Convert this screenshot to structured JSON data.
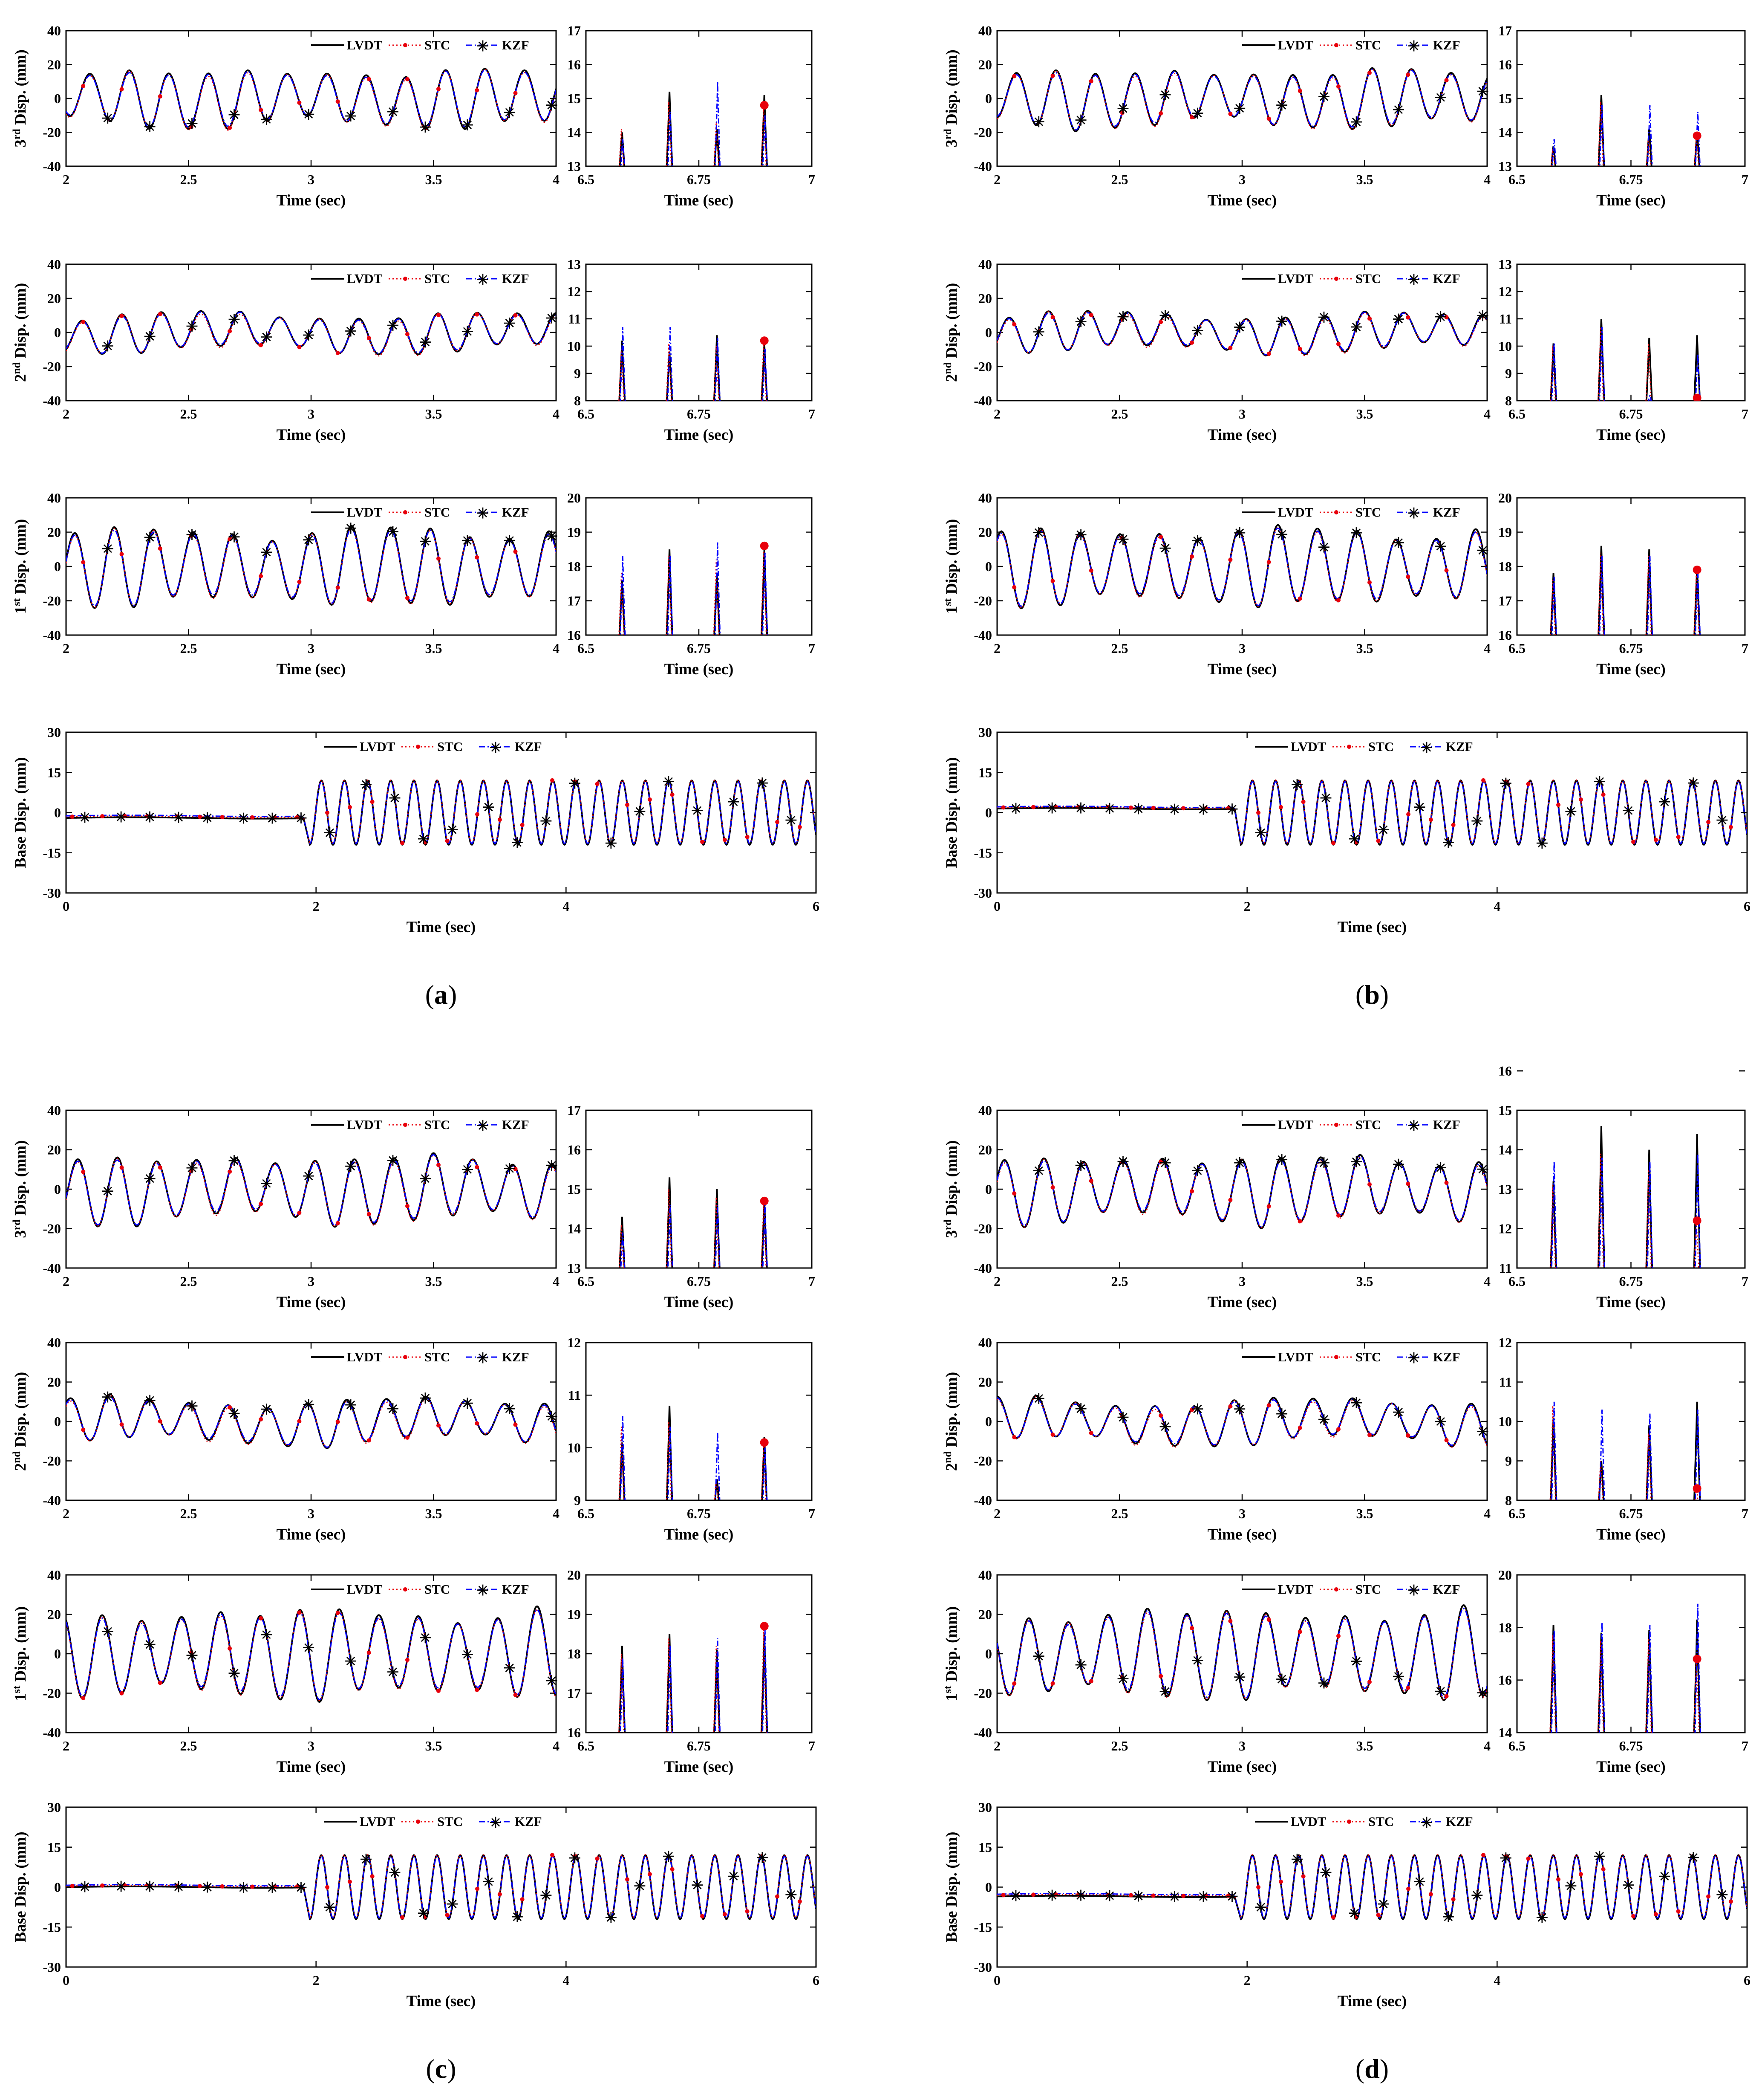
{
  "chart_data": {
    "type": "line",
    "panels": [
      "(a)",
      "(b)",
      "(c)",
      "(d)"
    ],
    "series": [
      {
        "name": "LVDT",
        "color": "#000000",
        "style": "solid"
      },
      {
        "name": "STC",
        "color": "#e8000b",
        "style": "dotted-dot-marker"
      },
      {
        "name": "KZF",
        "color": "#0000ff",
        "style": "dashdot-star-marker"
      }
    ],
    "legend": [
      "LVDT",
      "STC",
      "KZF"
    ],
    "legend_placement": "top-right",
    "signal": {
      "frequency_hz": 6.2,
      "base_amplitude_mm": 12,
      "base_offset_mm": -2,
      "step_time_sec": 1.9
    },
    "story_plots": [
      {
        "ylabel_pre": "3",
        "ylabel_sup": "rd",
        "ylabel_post": " Disp. (mm)",
        "amp_mm": 15,
        "ylim": [
          -40,
          40
        ],
        "yticks": [
          "-40",
          "-20",
          "0",
          "20",
          "40"
        ],
        "xlim": [
          2,
          4
        ],
        "xticks": [
          "2",
          "2.5",
          "3",
          "3.5",
          "4"
        ],
        "xlabel": "Time (sec)"
      },
      {
        "ylabel_pre": "2",
        "ylabel_sup": "nd",
        "ylabel_post": " Disp. (mm)",
        "amp_mm": 10,
        "ylim": [
          -40,
          40
        ],
        "yticks": [
          "-40",
          "-20",
          "0",
          "20",
          "40"
        ],
        "xlim": [
          2,
          4
        ],
        "xticks": [
          "2",
          "2.5",
          "3",
          "3.5",
          "4"
        ],
        "xlabel": "Time (sec)"
      },
      {
        "ylabel_pre": "1",
        "ylabel_sup": "st",
        "ylabel_post": " Disp. (mm)",
        "amp_mm": 20,
        "ylim": [
          -40,
          40
        ],
        "yticks": [
          "-40",
          "-20",
          "0",
          "20",
          "40"
        ],
        "xlim": [
          2,
          4
        ],
        "xticks": [
          "2",
          "2.5",
          "3",
          "3.5",
          "4"
        ],
        "xlabel": "Time (sec)"
      }
    ],
    "base_plot": {
      "ylabel": "Base Disp. (mm)",
      "ylim": [
        -30,
        30
      ],
      "yticks": [
        "-30",
        "-15",
        "0",
        "15",
        "30"
      ],
      "xlim": [
        0,
        6
      ],
      "xticks": [
        "0",
        "2",
        "4",
        "6"
      ],
      "xlabel": "Time (sec)"
    },
    "zoom_plots": {
      "xlim": [
        6.5,
        7
      ],
      "xticks": [
        "6.5",
        "6.75",
        "7"
      ],
      "xlabel": "Time (sec)",
      "peak_times": [
        6.58,
        6.685,
        6.79,
        6.895
      ],
      "panels": [
        [
          {
            "ylim": [
              13,
              17
            ],
            "yticks": [
              "13",
              "14",
              "15",
              "16",
              "17"
            ],
            "peaks": {
              "LVDT": [
                14.0,
                15.2,
                14.1,
                15.1
              ],
              "STC": [
                14.1,
                14.9,
                14.3,
                14.8
              ],
              "KZF": [
                13.8,
                14.6,
                15.5,
                14.5
              ]
            }
          },
          {
            "ylim": [
              8,
              13
            ],
            "yticks": [
              "8",
              "9",
              "10",
              "11",
              "12",
              "13"
            ],
            "peaks": {
              "LVDT": [
                10.2,
                9.8,
                10.4,
                10.1
              ],
              "STC": [
                9.9,
                10.1,
                10.0,
                10.2
              ],
              "KZF": [
                10.7,
                10.7,
                10.3,
                9.9
              ]
            }
          },
          {
            "ylim": [
              16,
              20
            ],
            "yticks": [
              "16",
              "17",
              "18",
              "19",
              "20"
            ],
            "peaks": {
              "LVDT": [
                17.6,
                18.5,
                17.8,
                18.5
              ],
              "STC": [
                17.8,
                18.3,
                18.2,
                18.6
              ],
              "KZF": [
                18.3,
                18.3,
                18.7,
                18.4
              ]
            }
          }
        ],
        [
          {
            "ylim": [
              13,
              17
            ],
            "yticks": [
              "13",
              "14",
              "15",
              "16",
              "17"
            ],
            "peaks": {
              "LVDT": [
                13.6,
                15.1,
                14.1,
                14.0
              ],
              "STC": [
                13.5,
                14.9,
                13.9,
                13.9
              ],
              "KZF": [
                13.8,
                14.8,
                14.8,
                14.6
              ]
            }
          },
          {
            "ylim": [
              8,
              13
            ],
            "yticks": [
              "8",
              "9",
              "10",
              "11",
              "12",
              "13"
            ],
            "peaks": {
              "LVDT": [
                10.1,
                11.0,
                10.3,
                10.4
              ],
              "STC": [
                10.0,
                10.7,
                10.1,
                8.1
              ],
              "KZF": [
                10.1,
                10.7,
                8.2,
                9.7
              ]
            }
          },
          {
            "ylim": [
              16,
              20
            ],
            "yticks": [
              "16",
              "17",
              "18",
              "19",
              "20"
            ],
            "peaks": {
              "LVDT": [
                17.8,
                18.6,
                18.5,
                18.0
              ],
              "STC": [
                17.6,
                18.4,
                18.3,
                17.9
              ],
              "KZF": [
                17.7,
                18.3,
                18.3,
                17.9
              ]
            }
          }
        ],
        [
          {
            "ylim": [
              13,
              17
            ],
            "yticks": [
              "13",
              "14",
              "15",
              "16",
              "17"
            ],
            "peaks": {
              "LVDT": [
                14.3,
                15.3,
                15.0,
                14.7
              ],
              "STC": [
                14.1,
                15.0,
                14.8,
                14.7
              ],
              "KZF": [
                13.9,
                14.6,
                14.6,
                14.6
              ]
            }
          },
          {
            "ylim": [
              9,
              12
            ],
            "yticks": [
              "9",
              "10",
              "11",
              "12"
            ],
            "peaks": {
              "LVDT": [
                10.1,
                10.8,
                9.4,
                10.2
              ],
              "STC": [
                10.4,
                10.5,
                9.4,
                10.1
              ],
              "KZF": [
                10.6,
                10.4,
                10.3,
                10.0
              ]
            }
          },
          {
            "ylim": [
              16,
              20
            ],
            "yticks": [
              "16",
              "17",
              "18",
              "19",
              "20"
            ],
            "peaks": {
              "LVDT": [
                18.2,
                18.5,
                18.1,
                18.5
              ],
              "STC": [
                18.0,
                18.4,
                18.2,
                18.7
              ],
              "KZF": [
                17.9,
                18.2,
                18.4,
                18.6
              ]
            }
          }
        ],
        [
          {
            "ylim": [
              11,
              15
            ],
            "yticks": [
              "11",
              "12",
              "13",
              "14",
              "15",
              "16"
            ],
            "peaks": {
              "LVDT": [
                13.2,
                14.6,
                14.0,
                14.4
              ],
              "STC": [
                13.1,
                13.9,
                13.5,
                12.2
              ],
              "KZF": [
                13.7,
                13.8,
                13.7,
                13.9
              ]
            }
          },
          {
            "ylim": [
              8,
              12
            ],
            "yticks": [
              "8",
              "9",
              "10",
              "11",
              "12"
            ],
            "peaks": {
              "LVDT": [
                10.1,
                9.0,
                9.9,
                10.5
              ],
              "STC": [
                10.4,
                9.0,
                9.7,
                8.3
              ],
              "KZF": [
                10.5,
                10.3,
                10.2,
                10.3
              ]
            }
          },
          {
            "ylim": [
              14,
              20
            ],
            "yticks": [
              "14",
              "16",
              "18",
              "20"
            ],
            "peaks": {
              "LVDT": [
                18.1,
                17.8,
                17.9,
                18.3
              ],
              "STC": [
                17.7,
                17.5,
                17.6,
                16.8
              ],
              "KZF": [
                17.9,
                18.2,
                18.1,
                18.9
              ]
            }
          }
        ]
      ]
    }
  }
}
